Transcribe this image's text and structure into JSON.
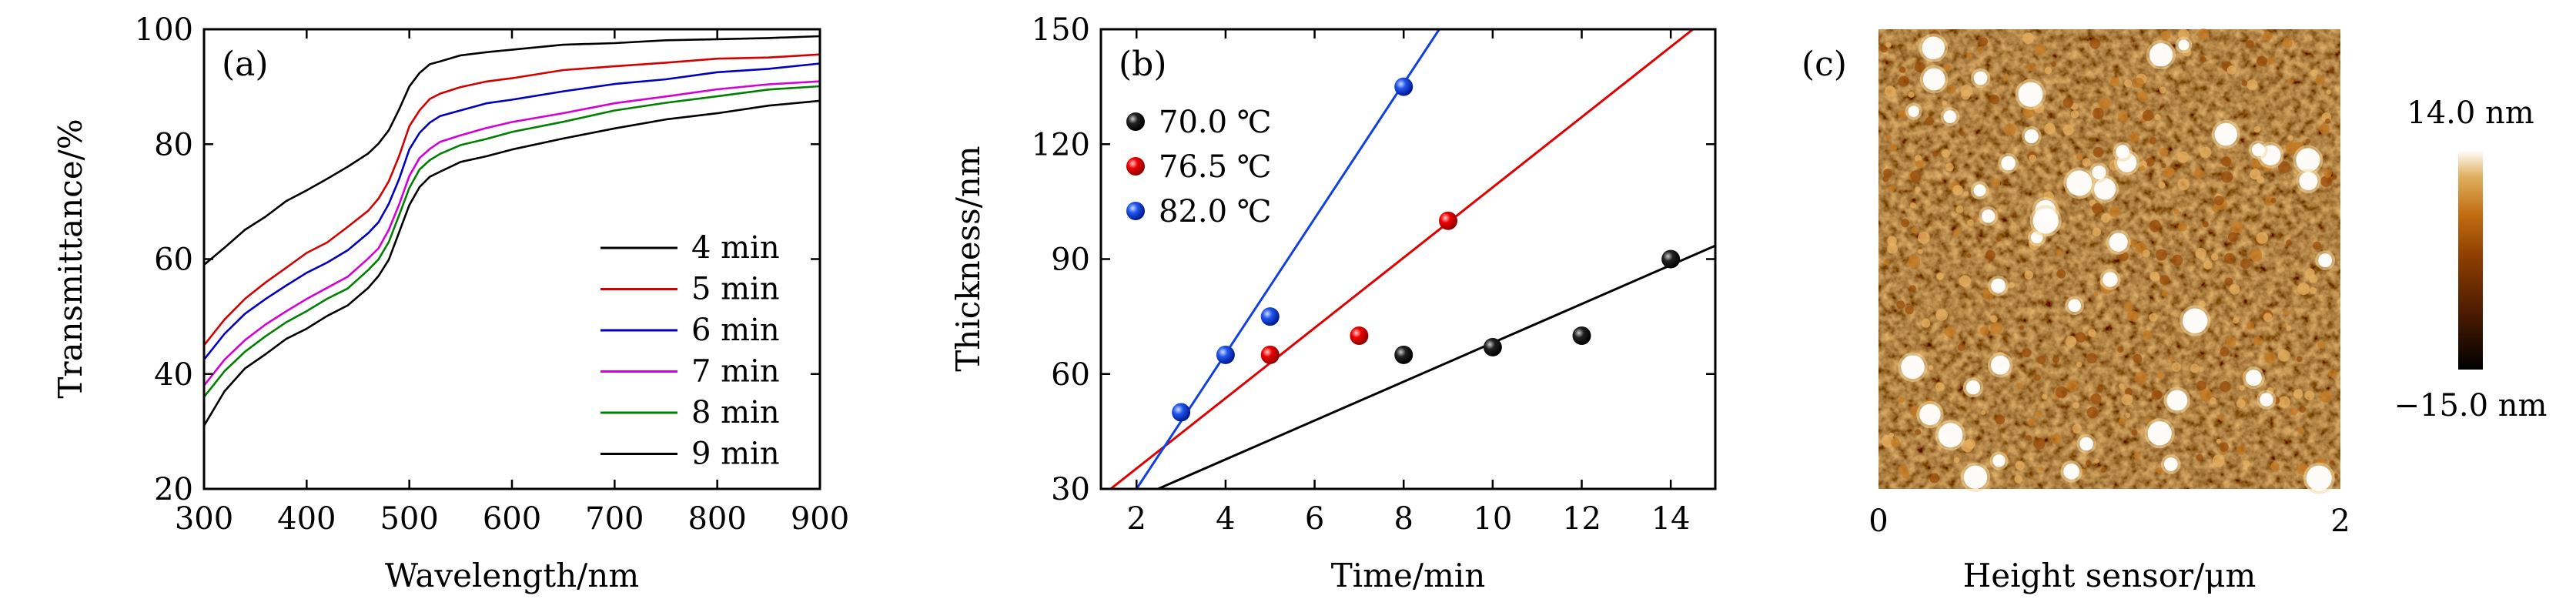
{
  "chart_data": [
    {
      "type": "line",
      "panel_label": "(a)",
      "xlabel": "Wavelength/nm",
      "ylabel": "Transmittance/%",
      "xlim": [
        300,
        900
      ],
      "ylim": [
        20,
        100
      ],
      "xticks": [
        300,
        400,
        500,
        600,
        700,
        800,
        900
      ],
      "yticks": [
        20,
        40,
        60,
        80,
        100
      ],
      "legend_position": "bottom-right",
      "x": [
        300,
        320,
        340,
        360,
        380,
        400,
        420,
        440,
        460,
        470,
        480,
        490,
        500,
        510,
        520,
        530,
        550,
        575,
        600,
        650,
        700,
        750,
        800,
        850,
        900
      ],
      "series": [
        {
          "name": "4 min",
          "color": "#000000",
          "values": [
            59.0,
            62.0,
            65.0,
            67.5,
            70.0,
            72.0,
            74.0,
            76.0,
            78.5,
            80.0,
            82.5,
            86.0,
            90.0,
            92.5,
            93.8,
            94.5,
            95.4,
            96.0,
            96.5,
            97.2,
            97.7,
            98.0,
            98.3,
            98.5,
            98.7
          ]
        },
        {
          "name": "5 min",
          "color": "#d40000",
          "values": [
            45.0,
            49.5,
            53.0,
            56.0,
            58.5,
            61.0,
            63.0,
            65.5,
            68.5,
            70.5,
            73.5,
            78.0,
            83.0,
            86.0,
            87.8,
            88.8,
            90.0,
            90.8,
            91.6,
            92.8,
            93.6,
            94.2,
            94.8,
            95.2,
            95.5
          ]
        },
        {
          "name": "6 min",
          "color": "#0000c0",
          "values": [
            42.5,
            47.0,
            50.5,
            53.0,
            55.5,
            57.5,
            59.5,
            61.5,
            64.5,
            66.5,
            69.5,
            74.0,
            79.0,
            82.0,
            83.8,
            84.8,
            86.0,
            87.0,
            87.8,
            89.2,
            90.4,
            91.4,
            92.4,
            93.2,
            94.0
          ]
        },
        {
          "name": "7 min",
          "color": "#d400d4",
          "values": [
            38.0,
            42.5,
            46.0,
            48.5,
            51.0,
            53.0,
            55.0,
            57.0,
            60.0,
            62.0,
            65.0,
            69.5,
            74.5,
            77.5,
            79.3,
            80.3,
            81.6,
            82.8,
            83.8,
            85.5,
            87.0,
            88.4,
            89.5,
            90.4,
            91.0
          ]
        },
        {
          "name": "8 min",
          "color": "#008000",
          "values": [
            36.0,
            40.5,
            44.0,
            46.5,
            49.0,
            51.0,
            53.0,
            55.0,
            58.0,
            60.0,
            63.0,
            67.5,
            72.5,
            75.5,
            77.3,
            78.3,
            79.8,
            81.0,
            82.0,
            84.0,
            85.8,
            87.2,
            88.4,
            89.4,
            90.2
          ]
        },
        {
          "name": "9 min",
          "color": "#000000",
          "values": [
            31.0,
            37.0,
            41.0,
            43.5,
            46.0,
            48.0,
            50.0,
            52.0,
            55.0,
            57.0,
            60.0,
            64.5,
            69.5,
            72.5,
            74.3,
            75.3,
            76.8,
            78.0,
            79.0,
            81.0,
            82.8,
            84.2,
            85.5,
            86.6,
            87.6
          ]
        }
      ]
    },
    {
      "type": "scatter",
      "panel_label": "(b)",
      "xlabel": "Time/min",
      "ylabel": "Thickness/nm",
      "xlim": [
        1.2,
        15
      ],
      "ylim": [
        30,
        150
      ],
      "xticks": [
        2,
        4,
        6,
        8,
        10,
        12,
        14
      ],
      "yticks": [
        30,
        60,
        90,
        120,
        150
      ],
      "legend_position": "top-left",
      "series": [
        {
          "name": "70.0 ℃",
          "color": "#000000",
          "points": [
            [
              8,
              65
            ],
            [
              10,
              67
            ],
            [
              12,
              70
            ],
            [
              14,
              90
            ]
          ],
          "fit_line": [
            [
              1.2,
              23.5
            ],
            [
              15,
              93.5
            ]
          ]
        },
        {
          "name": "76.5 ℃",
          "color": "#e00000",
          "points": [
            [
              5,
              65
            ],
            [
              7,
              70
            ],
            [
              9,
              100
            ]
          ],
          "fit_line": [
            [
              1.2,
              28
            ],
            [
              14.5,
              150
            ]
          ]
        },
        {
          "name": "82.0 ℃",
          "color": "#1040e0",
          "points": [
            [
              3,
              50
            ],
            [
              4,
              65
            ],
            [
              5,
              75
            ],
            [
              8,
              135
            ]
          ],
          "fit_line": [
            [
              2,
              30
            ],
            [
              8.8,
              150
            ]
          ]
        }
      ]
    },
    {
      "type": "heatmap",
      "panel_label": "(c)",
      "xlabel": "Height sensor/μm",
      "xlim": [
        0,
        2
      ],
      "xticks": [
        "0",
        "2"
      ],
      "colorbar_max": "14.0 nm",
      "colorbar_min": "−15.0 nm",
      "colormap": [
        "#000000",
        "#4a1a00",
        "#8a3c00",
        "#c06a10",
        "#e0b060",
        "#ffffff"
      ]
    }
  ]
}
